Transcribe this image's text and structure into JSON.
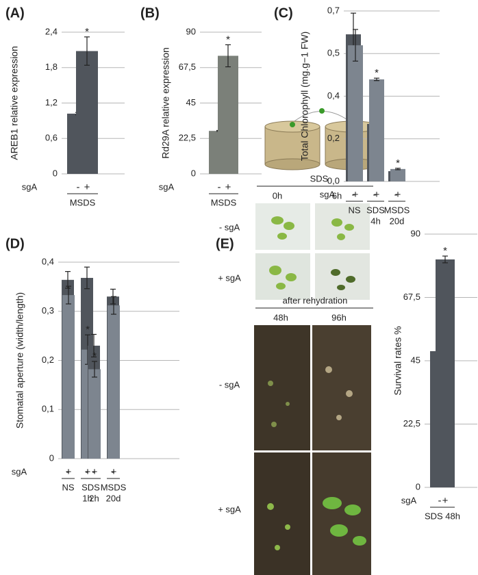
{
  "chart_data": [
    {
      "type": "bar",
      "panel": "(A)",
      "y_label": "AREB1 relative expression",
      "x_label": "sgA",
      "ylim": [
        0,
        2.4
      ],
      "yticks": [
        0,
        {
          "value": 0.6,
          "label": "0,6"
        },
        {
          "value": 1.2,
          "label": "1,2"
        },
        {
          "value": 1.8,
          "label": "1,8"
        },
        {
          "value": 2.4,
          "label": "2,4"
        }
      ],
      "grid": true,
      "groups": [
        {
          "label": [
            "MSDS"
          ],
          "bars": [
            {
              "category": "-",
              "value": 1.02,
              "error": 0.02,
              "color": "#50555c"
            },
            {
              "category": "+",
              "value": 2.08,
              "error": 0.24,
              "color": "#50555c",
              "annotation": "*"
            }
          ]
        }
      ]
    },
    {
      "type": "bar",
      "panel": "(B)",
      "y_label": "Rd29A relative expression",
      "x_label": "sgA",
      "ylim": [
        0,
        90
      ],
      "yticks": [
        0,
        {
          "value": 22.5,
          "label": "22,5"
        },
        45,
        {
          "value": 67.5,
          "label": "67,5"
        },
        90
      ],
      "grid": true,
      "groups": [
        {
          "label": [
            "MSDS"
          ],
          "bars": [
            {
              "category": "-",
              "value": 27.3,
              "error": 0.3,
              "color": "#7b8079"
            },
            {
              "category": "+",
              "value": 75,
              "error": 7,
              "color": "#7b8079",
              "annotation": "*"
            }
          ]
        }
      ]
    },
    {
      "type": "bar",
      "panel": "(C)",
      "y_label": "Total Chlorophyll (mg.g−1 FW)",
      "x_label": "sgA",
      "ylim": [
        0,
        0.7
      ],
      "yticks": [
        {
          "value": 0,
          "label": "0,0"
        },
        {
          "value": 0.175,
          "label": "0,2"
        },
        {
          "value": 0.35,
          "label": "0,4"
        },
        {
          "value": 0.525,
          "label": "0,5"
        },
        {
          "value": 0.7,
          "label": "0,7"
        }
      ],
      "grid": true,
      "groups": [
        {
          "label": [
            "NS"
          ],
          "bars": [
            {
              "category": "-",
              "value": 0.604,
              "error": 0.087,
              "color": "#50555c"
            },
            {
              "category": "+",
              "value": 0.559,
              "error": 0.065,
              "color": "#7d858f"
            }
          ]
        },
        {
          "label": [
            "SDS",
            "4h"
          ],
          "bars": [
            {
              "category": "-",
              "value": 0.236,
              "error": 0.053,
              "color": "#50555c"
            },
            {
              "category": "+",
              "value": 0.419,
              "error": 0.005,
              "color": "#7d858f",
              "annotation": "*"
            }
          ]
        },
        {
          "label": [
            "MSDS",
            "20d"
          ],
          "bars": [
            {
              "category": "-",
              "value": 0.042,
              "error": 0.002,
              "color": "#50555c"
            },
            {
              "category": "+",
              "value": 0.051,
              "error": 0.003,
              "color": "#7d858f",
              "annotation": "*"
            }
          ]
        }
      ]
    },
    {
      "type": "bar",
      "panel": "(D)",
      "y_label": "Stomatal aperture (width/length)",
      "x_label": "sgA",
      "ylim": [
        0,
        0.4
      ],
      "yticks": [
        0,
        {
          "value": 0.1,
          "label": "0,1"
        },
        {
          "value": 0.2,
          "label": "0,2"
        },
        {
          "value": 0.3,
          "label": "0,3"
        },
        {
          "value": 0.4,
          "label": "0,4"
        }
      ],
      "grid": true,
      "groups": [
        {
          "label": [
            "NS"
          ],
          "bars": [
            {
              "category": "-",
              "value": 0.364,
              "error": 0.017,
              "color": "#50555c"
            },
            {
              "category": "+",
              "value": 0.333,
              "error": 0.018,
              "color": "#7d858f"
            }
          ]
        },
        {
          "label": [
            "SDS"
          ],
          "sublabels": [
            "1h",
            "2h"
          ],
          "bars": [
            {
              "category": "-",
              "value": 0.368,
              "error": 0.022,
              "color": "#50555c"
            },
            {
              "category": "+",
              "value": 0.222,
              "error": 0.03,
              "color": "#7d858f",
              "annotation": "*"
            },
            {
              "category": "-",
              "value": 0.23,
              "error": 0.023,
              "color": "#50555c"
            },
            {
              "category": "+",
              "value": 0.182,
              "error": 0.016,
              "color": "#7d858f",
              "annotation": "*"
            }
          ]
        },
        {
          "label": [
            "MSDS",
            "20d"
          ],
          "bars": [
            {
              "category": "-",
              "value": 0.33,
              "error": 0.015,
              "color": "#50555c"
            },
            {
              "category": "+",
              "value": 0.312,
              "error": 0.018,
              "color": "#7d858f"
            }
          ]
        }
      ]
    },
    {
      "type": "bar",
      "panel": "(E)",
      "y_label": "Survival rates %",
      "x_label": "sgA",
      "ylim": [
        0,
        90
      ],
      "yticks": [
        0,
        {
          "value": 22.5,
          "label": "22,5"
        },
        45,
        {
          "value": 67.5,
          "label": "67,5"
        },
        90
      ],
      "grid": true,
      "groups": [
        {
          "label": [
            "SDS 48h"
          ],
          "bars": [
            {
              "category": "-",
              "value": 48.4,
              "error": 0.7,
              "color": "#50555c"
            },
            {
              "category": "+",
              "value": 81,
              "error": 1.2,
              "color": "#50555c",
              "annotation": "*"
            }
          ]
        }
      ]
    }
  ],
  "photos": {
    "treatment": "SDS",
    "times": [
      "0h",
      "6h"
    ],
    "rows": [
      "- sgA",
      "+ sgA"
    ],
    "rehydration": "after rehydration",
    "rehydration_times": [
      "48h",
      "96h"
    ],
    "rehydration_rows": [
      "- sgA",
      "+ sgA"
    ]
  }
}
